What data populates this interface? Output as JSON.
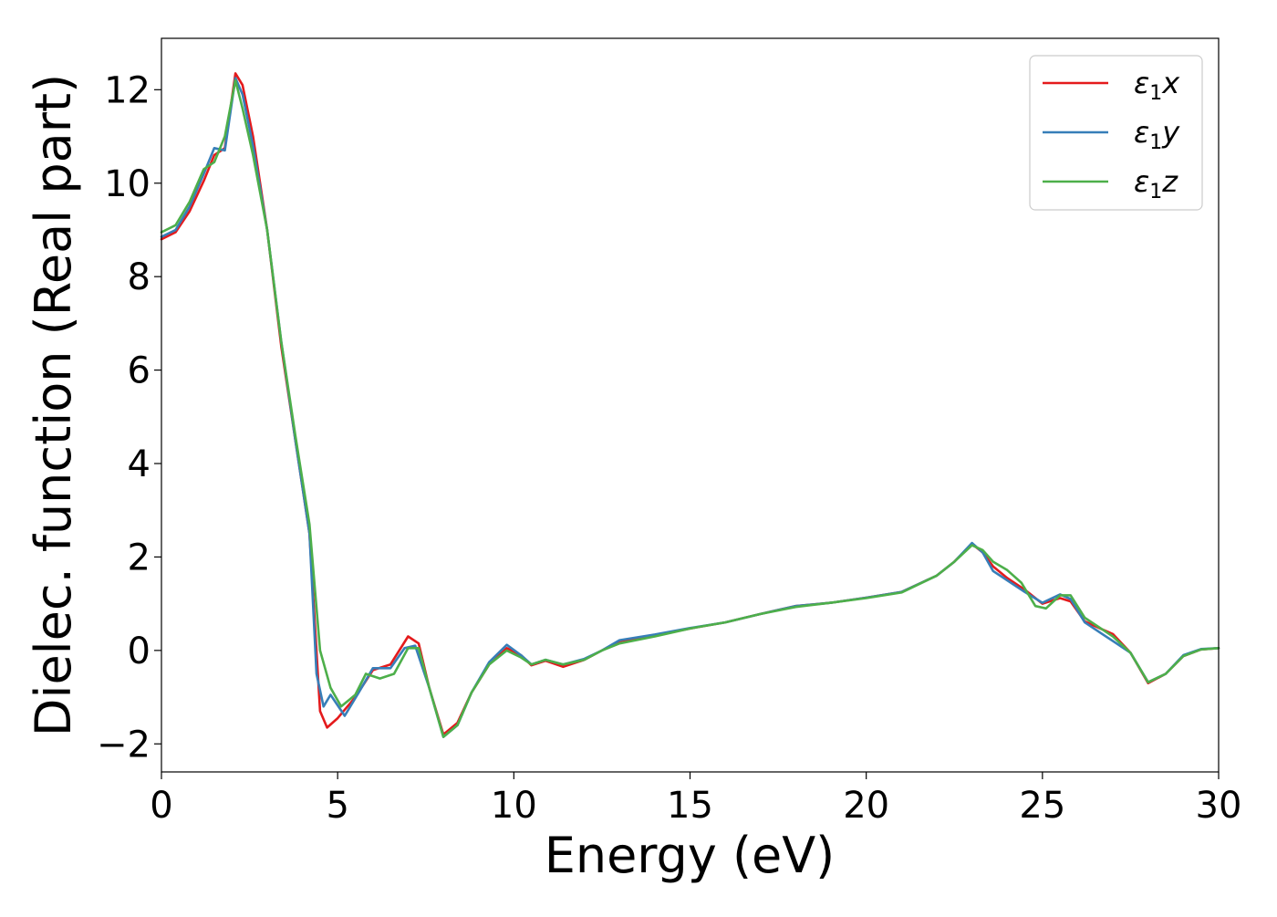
{
  "chart_data": {
    "type": "line",
    "title": "",
    "xlabel": "Energy (eV)",
    "ylabel": "Dielec. function (Real part)",
    "xlim": [
      0,
      30
    ],
    "ylim": [
      -2.6,
      13.1
    ],
    "xticks": [
      0,
      5,
      10,
      15,
      20,
      25,
      30
    ],
    "xtick_labels": [
      "0",
      "5",
      "10",
      "15",
      "20",
      "25",
      "30"
    ],
    "yticks": [
      -2,
      0,
      2,
      4,
      6,
      8,
      10,
      12
    ],
    "ytick_labels": [
      "−2",
      "0",
      "2",
      "4",
      "6",
      "8",
      "10",
      "12"
    ],
    "grid": false,
    "legend_position": "top-right",
    "series": [
      {
        "name": "ε₁x",
        "legend_main": "ε",
        "legend_sub": "1",
        "legend_var": "x",
        "color": "#e41a1c",
        "points": [
          [
            0,
            8.8
          ],
          [
            0.4,
            8.95
          ],
          [
            0.8,
            9.4
          ],
          [
            1.2,
            10.05
          ],
          [
            1.5,
            10.6
          ],
          [
            1.8,
            10.75
          ],
          [
            2.1,
            12.35
          ],
          [
            2.3,
            12.1
          ],
          [
            2.6,
            11.0
          ],
          [
            3.0,
            9.0
          ],
          [
            3.4,
            6.5
          ],
          [
            3.8,
            4.5
          ],
          [
            4.2,
            2.5
          ],
          [
            4.5,
            -1.3
          ],
          [
            4.7,
            -1.65
          ],
          [
            5.0,
            -1.45
          ],
          [
            5.5,
            -1.0
          ],
          [
            6.0,
            -0.42
          ],
          [
            6.5,
            -0.3
          ],
          [
            7.0,
            0.3
          ],
          [
            7.3,
            0.15
          ],
          [
            7.6,
            -0.8
          ],
          [
            8.0,
            -1.8
          ],
          [
            8.4,
            -1.55
          ],
          [
            8.8,
            -0.9
          ],
          [
            9.3,
            -0.3
          ],
          [
            9.8,
            0.05
          ],
          [
            10.2,
            -0.1
          ],
          [
            10.5,
            -0.32
          ],
          [
            10.9,
            -0.22
          ],
          [
            11.4,
            -0.35
          ],
          [
            12.0,
            -0.2
          ],
          [
            12.5,
            0.0
          ],
          [
            13.0,
            0.2
          ],
          [
            14.0,
            0.32
          ],
          [
            15.0,
            0.47
          ],
          [
            16.0,
            0.6
          ],
          [
            17.0,
            0.78
          ],
          [
            18.0,
            0.95
          ],
          [
            19.0,
            1.02
          ],
          [
            20.0,
            1.13
          ],
          [
            21.0,
            1.25
          ],
          [
            22.0,
            1.6
          ],
          [
            22.5,
            1.9
          ],
          [
            23.0,
            2.28
          ],
          [
            23.3,
            2.1
          ],
          [
            23.6,
            1.8
          ],
          [
            24.0,
            1.55
          ],
          [
            24.5,
            1.3
          ],
          [
            25.0,
            1.0
          ],
          [
            25.5,
            1.12
          ],
          [
            25.8,
            1.05
          ],
          [
            26.2,
            0.62
          ],
          [
            26.7,
            0.45
          ],
          [
            27.0,
            0.35
          ],
          [
            27.5,
            -0.05
          ],
          [
            28.0,
            -0.7
          ],
          [
            28.5,
            -0.5
          ],
          [
            29.0,
            -0.12
          ],
          [
            29.5,
            0.02
          ],
          [
            30.0,
            0.05
          ]
        ]
      },
      {
        "name": "ε₁y",
        "legend_main": "ε",
        "legend_sub": "1",
        "legend_var": "y",
        "color": "#377eb8",
        "points": [
          [
            0,
            8.85
          ],
          [
            0.4,
            9.0
          ],
          [
            0.8,
            9.5
          ],
          [
            1.2,
            10.2
          ],
          [
            1.5,
            10.75
          ],
          [
            1.8,
            10.7
          ],
          [
            2.1,
            12.25
          ],
          [
            2.3,
            11.9
          ],
          [
            2.6,
            10.8
          ],
          [
            3.0,
            9.0
          ],
          [
            3.4,
            6.6
          ],
          [
            3.8,
            4.5
          ],
          [
            4.2,
            2.5
          ],
          [
            4.4,
            -0.5
          ],
          [
            4.6,
            -1.2
          ],
          [
            4.8,
            -0.95
          ],
          [
            5.2,
            -1.4
          ],
          [
            5.6,
            -0.9
          ],
          [
            6.0,
            -0.38
          ],
          [
            6.5,
            -0.38
          ],
          [
            6.9,
            0.05
          ],
          [
            7.2,
            0.1
          ],
          [
            7.6,
            -0.8
          ],
          [
            8.0,
            -1.85
          ],
          [
            8.4,
            -1.6
          ],
          [
            8.8,
            -0.9
          ],
          [
            9.3,
            -0.25
          ],
          [
            9.8,
            0.12
          ],
          [
            10.2,
            -0.1
          ],
          [
            10.5,
            -0.3
          ],
          [
            10.9,
            -0.2
          ],
          [
            11.4,
            -0.3
          ],
          [
            12.0,
            -0.18
          ],
          [
            12.5,
            0.0
          ],
          [
            13.0,
            0.22
          ],
          [
            14.0,
            0.34
          ],
          [
            15.0,
            0.48
          ],
          [
            16.0,
            0.6
          ],
          [
            17.0,
            0.78
          ],
          [
            18.0,
            0.95
          ],
          [
            19.0,
            1.02
          ],
          [
            20.0,
            1.13
          ],
          [
            21.0,
            1.25
          ],
          [
            22.0,
            1.6
          ],
          [
            22.5,
            1.9
          ],
          [
            23.0,
            2.3
          ],
          [
            23.3,
            2.1
          ],
          [
            23.6,
            1.7
          ],
          [
            24.0,
            1.5
          ],
          [
            24.5,
            1.25
          ],
          [
            25.0,
            1.02
          ],
          [
            25.5,
            1.2
          ],
          [
            25.8,
            1.1
          ],
          [
            26.2,
            0.6
          ],
          [
            26.7,
            0.35
          ],
          [
            27.0,
            0.2
          ],
          [
            27.5,
            -0.05
          ],
          [
            28.0,
            -0.68
          ],
          [
            28.5,
            -0.5
          ],
          [
            29.0,
            -0.1
          ],
          [
            29.5,
            0.03
          ],
          [
            30.0,
            0.05
          ]
        ]
      },
      {
        "name": "ε₁z",
        "legend_main": "ε",
        "legend_sub": "1",
        "legend_var": "z",
        "color": "#4daf4a",
        "points": [
          [
            0,
            8.95
          ],
          [
            0.4,
            9.1
          ],
          [
            0.8,
            9.6
          ],
          [
            1.2,
            10.3
          ],
          [
            1.5,
            10.45
          ],
          [
            1.8,
            11.0
          ],
          [
            2.1,
            12.2
          ],
          [
            2.3,
            11.6
          ],
          [
            2.6,
            10.6
          ],
          [
            3.0,
            9.0
          ],
          [
            3.4,
            6.6
          ],
          [
            3.8,
            4.6
          ],
          [
            4.2,
            2.7
          ],
          [
            4.5,
            0.0
          ],
          [
            4.8,
            -0.8
          ],
          [
            5.1,
            -1.2
          ],
          [
            5.5,
            -0.95
          ],
          [
            5.8,
            -0.5
          ],
          [
            6.2,
            -0.6
          ],
          [
            6.6,
            -0.5
          ],
          [
            7.0,
            0.05
          ],
          [
            7.3,
            0.05
          ],
          [
            7.6,
            -0.8
          ],
          [
            8.0,
            -1.85
          ],
          [
            8.4,
            -1.6
          ],
          [
            8.8,
            -0.9
          ],
          [
            9.3,
            -0.3
          ],
          [
            9.8,
            0.0
          ],
          [
            10.2,
            -0.15
          ],
          [
            10.5,
            -0.3
          ],
          [
            10.9,
            -0.2
          ],
          [
            11.4,
            -0.3
          ],
          [
            12.0,
            -0.2
          ],
          [
            12.5,
            0.0
          ],
          [
            13.0,
            0.15
          ],
          [
            14.0,
            0.3
          ],
          [
            15.0,
            0.47
          ],
          [
            16.0,
            0.6
          ],
          [
            17.0,
            0.78
          ],
          [
            18.0,
            0.93
          ],
          [
            19.0,
            1.02
          ],
          [
            20.0,
            1.12
          ],
          [
            21.0,
            1.24
          ],
          [
            22.0,
            1.6
          ],
          [
            22.5,
            1.9
          ],
          [
            23.0,
            2.25
          ],
          [
            23.3,
            2.15
          ],
          [
            23.6,
            1.9
          ],
          [
            24.0,
            1.72
          ],
          [
            24.4,
            1.45
          ],
          [
            24.8,
            0.95
          ],
          [
            25.1,
            0.9
          ],
          [
            25.5,
            1.18
          ],
          [
            25.8,
            1.18
          ],
          [
            26.2,
            0.7
          ],
          [
            26.7,
            0.45
          ],
          [
            27.0,
            0.3
          ],
          [
            27.5,
            -0.05
          ],
          [
            28.0,
            -0.68
          ],
          [
            28.5,
            -0.5
          ],
          [
            29.0,
            -0.12
          ],
          [
            29.5,
            0.02
          ],
          [
            30.0,
            0.05
          ]
        ]
      }
    ]
  }
}
